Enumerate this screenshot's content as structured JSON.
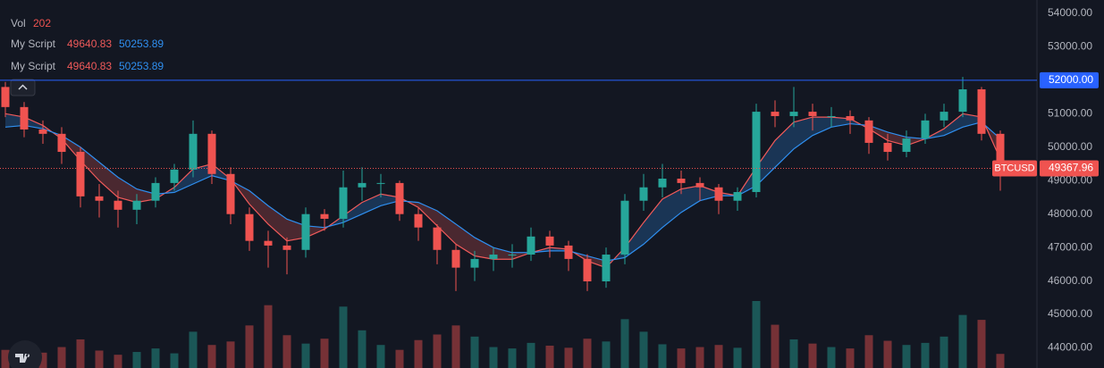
{
  "chart_data": {
    "type": "candlestick",
    "symbol": "BTCUSD",
    "volume_label": "Vol",
    "up_color": "#26a69a",
    "down_color": "#ef5350",
    "grid": false,
    "ylim": [
      43400,
      54400
    ],
    "yticks": [
      {
        "value": 44000,
        "label": "44000.00"
      },
      {
        "value": 45000,
        "label": "45000.00"
      },
      {
        "value": 46000,
        "label": "46000.00"
      },
      {
        "value": 47000,
        "label": "47000.00"
      },
      {
        "value": 48000,
        "label": "48000.00"
      },
      {
        "value": 49000,
        "label": "49000.00"
      },
      {
        "value": 50000,
        "label": "50000.00"
      },
      {
        "value": 51000,
        "label": "51000.00"
      },
      {
        "value": 52000,
        "label": "52000.00"
      },
      {
        "value": 53000,
        "label": "53000.00"
      },
      {
        "value": 54000,
        "label": "54000.00"
      }
    ],
    "hline": {
      "value": 52000,
      "label": "52000.00",
      "color": "#2962ff"
    },
    "open": [
      51800,
      51200,
      50530,
      50400,
      49860,
      48530,
      48400,
      48130,
      48400,
      48930,
      49330,
      50400,
      49200,
      48000,
      47200,
      47060,
      46930,
      48000,
      47860,
      48800,
      48930,
      48930,
      48000,
      47600,
      46930,
      46400,
      46660,
      46790,
      46790,
      47330,
      47060,
      46660,
      45990,
      46790,
      48400,
      48800,
      49060,
      48930,
      48800,
      48400,
      48660,
      51060,
      50930,
      51060,
      50930,
      50930,
      50800,
      50130,
      49860,
      50260,
      50800,
      51060,
      51730,
      50400
    ],
    "high": [
      51950,
      51350,
      50800,
      50600,
      50000,
      48900,
      48700,
      48600,
      49100,
      49500,
      50800,
      50500,
      49400,
      48200,
      47500,
      47300,
      48200,
      48150,
      49300,
      49400,
      49200,
      49000,
      48200,
      47700,
      47100,
      46900,
      47000,
      47100,
      47600,
      47500,
      47200,
      46800,
      47000,
      48600,
      49200,
      49500,
      49300,
      49100,
      48900,
      48800,
      51300,
      51400,
      51800,
      51300,
      51200,
      51100,
      50900,
      50400,
      50500,
      51000,
      51300,
      52100,
      51800,
      50500
    ],
    "low": [
      50900,
      50300,
      50100,
      49500,
      48200,
      47900,
      47600,
      47700,
      48200,
      48700,
      49100,
      48900,
      47700,
      46900,
      46400,
      46200,
      46700,
      47500,
      47600,
      48400,
      48500,
      47800,
      47200,
      46500,
      45700,
      46000,
      46300,
      46400,
      46600,
      46700,
      46300,
      45700,
      45800,
      46500,
      48100,
      48500,
      48600,
      48400,
      48000,
      48100,
      48500,
      50600,
      50600,
      50500,
      50600,
      50400,
      49800,
      49600,
      49700,
      50100,
      50600,
      50900,
      50200,
      48700
    ],
    "close": [
      51200,
      50530,
      50400,
      49860,
      48530,
      48400,
      48130,
      48400,
      48930,
      49330,
      50400,
      49200,
      48000,
      47200,
      47060,
      46930,
      48000,
      47860,
      48800,
      48930,
      48930,
      48000,
      47600,
      46930,
      46400,
      46660,
      46790,
      46790,
      47330,
      47060,
      46660,
      45990,
      46790,
      48400,
      48800,
      49060,
      48930,
      48800,
      48400,
      48660,
      51060,
      50930,
      51060,
      50930,
      50930,
      50800,
      50130,
      49860,
      50260,
      50800,
      51060,
      51730,
      50400,
      49367.96
    ],
    "volume": [
      260,
      180,
      220,
      300,
      410,
      250,
      190,
      230,
      280,
      210,
      520,
      330,
      380,
      610,
      900,
      470,
      350,
      420,
      880,
      540,
      330,
      260,
      400,
      480,
      610,
      450,
      300,
      280,
      360,
      320,
      290,
      420,
      380,
      700,
      520,
      340,
      280,
      300,
      330,
      290,
      960,
      620,
      410,
      350,
      300,
      280,
      470,
      390,
      330,
      360,
      450,
      760,
      690,
      202
    ],
    "indicator": {
      "name": "My Script",
      "series": [
        {
          "color": "#f05a5a",
          "values": [
            51000,
            50900,
            50650,
            50250,
            49600,
            49000,
            48500,
            48350,
            48450,
            48800,
            49350,
            49500,
            49050,
            48300,
            47700,
            47200,
            47300,
            47550,
            47950,
            48350,
            48600,
            48500,
            48200,
            47650,
            47100,
            46750,
            46650,
            46650,
            46850,
            47000,
            46950,
            46600,
            46400,
            47000,
            47750,
            48450,
            48750,
            48850,
            48650,
            48550,
            49400,
            50200,
            50750,
            50900,
            50900,
            50850,
            50550,
            50200,
            50050,
            50250,
            50550,
            51000,
            50900,
            49640.83
          ]
        },
        {
          "color": "#2f8ff0",
          "values": [
            50600,
            50650,
            50550,
            50350,
            50000,
            49550,
            49100,
            48750,
            48600,
            48650,
            48900,
            49150,
            49000,
            48700,
            48250,
            47850,
            47650,
            47600,
            47750,
            48000,
            48250,
            48400,
            48350,
            48100,
            47700,
            47300,
            47000,
            46850,
            46850,
            46900,
            46900,
            46750,
            46600,
            46700,
            47100,
            47600,
            48050,
            48400,
            48550,
            48550,
            48850,
            49400,
            49950,
            50350,
            50600,
            50700,
            50650,
            50450,
            50300,
            50250,
            50350,
            50600,
            50750,
            50253.89
          ]
        }
      ]
    }
  }
}
